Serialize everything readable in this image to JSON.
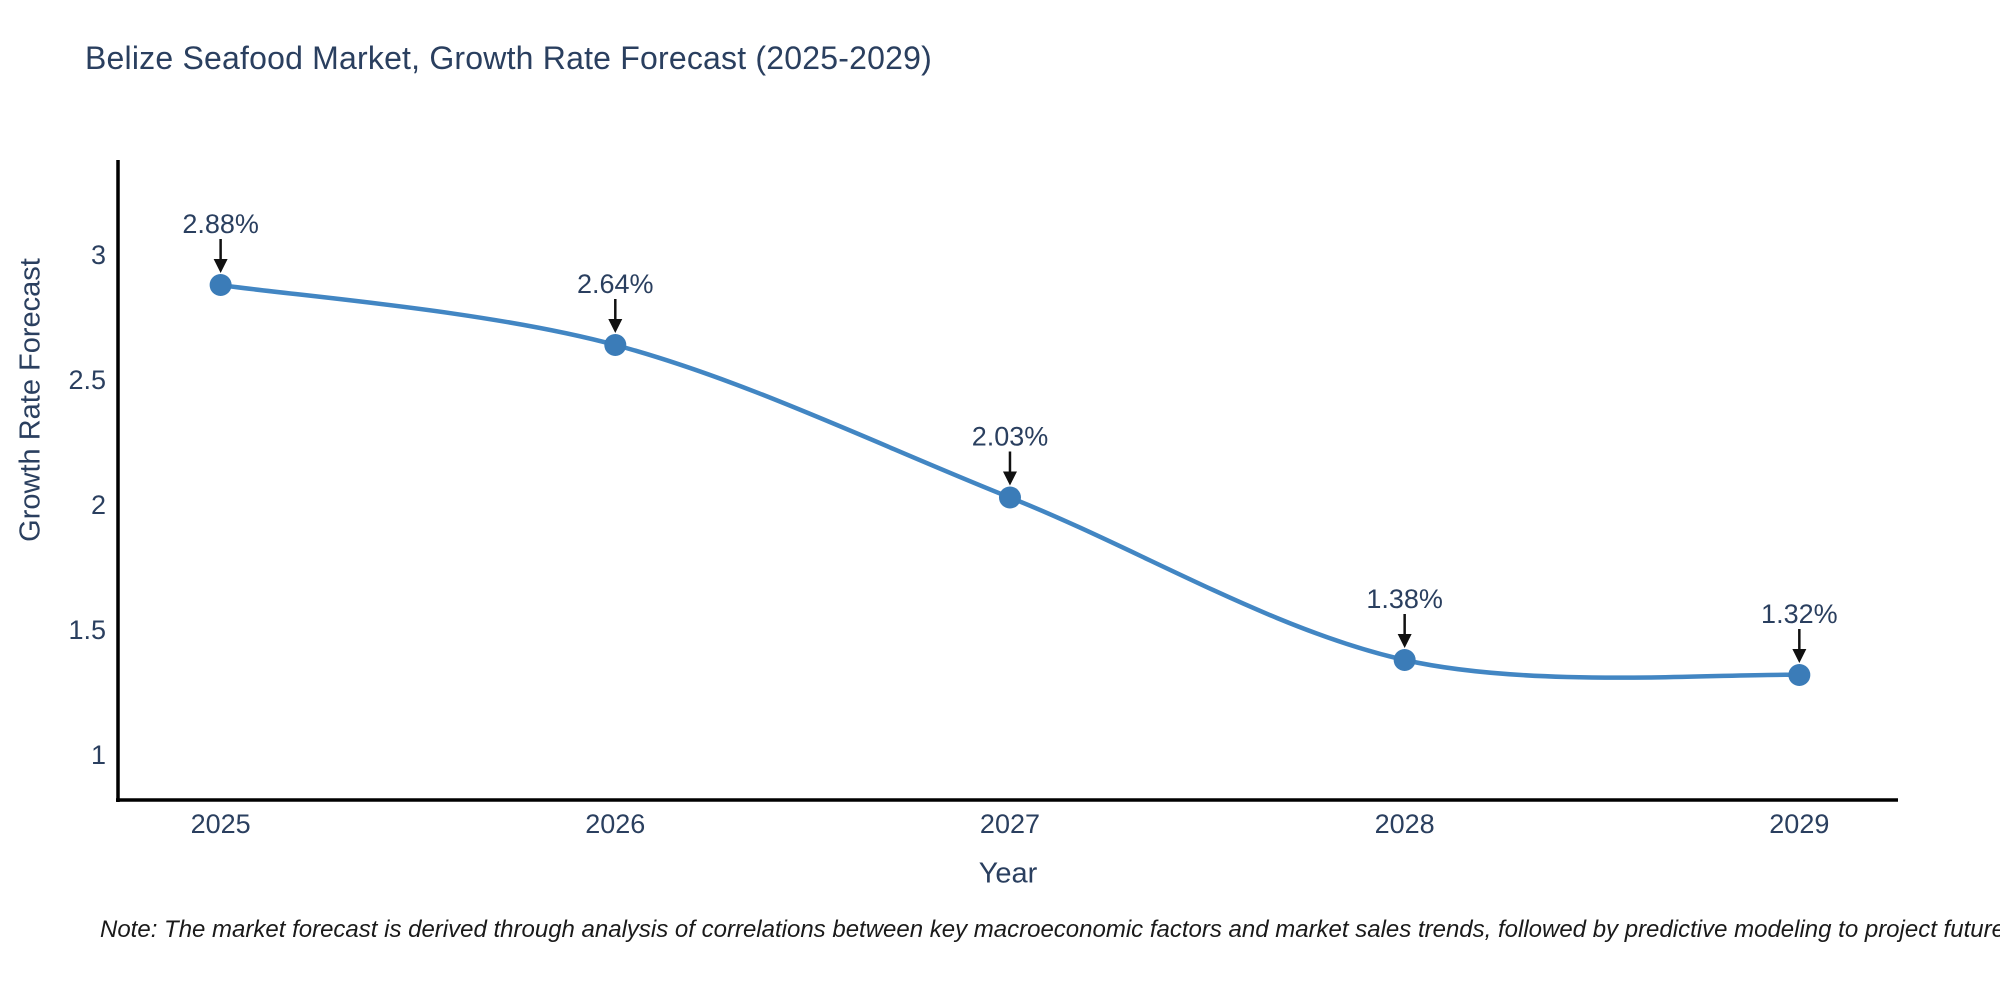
{
  "note": "Note: The market forecast is derived through analysis of correlations between key macroeconomic factors and market sales trends, followed by predictive modeling to project future sales",
  "chart_data": {
    "type": "line",
    "title": "Belize Seafood Market, Growth Rate Forecast (2025-2029)",
    "xlabel": "Year",
    "ylabel": "Growth Rate Forecast",
    "x": [
      2025,
      2026,
      2027,
      2028,
      2029
    ],
    "y": [
      2.88,
      2.64,
      2.03,
      1.38,
      1.32
    ],
    "point_labels": [
      "2.88%",
      "2.64%",
      "2.03%",
      "1.38%",
      "1.32%"
    ],
    "xticks": [
      "2025",
      "2026",
      "2027",
      "2028",
      "2029"
    ],
    "yticks": [
      "1",
      "1.5",
      "2",
      "2.5",
      "3"
    ],
    "xlim": [
      2024.74,
      2029.25
    ],
    "ylim": [
      0.82,
      3.38
    ],
    "line_shape": "spline",
    "grid": false,
    "legend": "none",
    "colors": {
      "line": "#4286c3",
      "marker": "#3b7cb8",
      "axis": "#000000",
      "text": "#2a3f5f",
      "arrow": "#111111",
      "background": "#ffffff"
    }
  }
}
